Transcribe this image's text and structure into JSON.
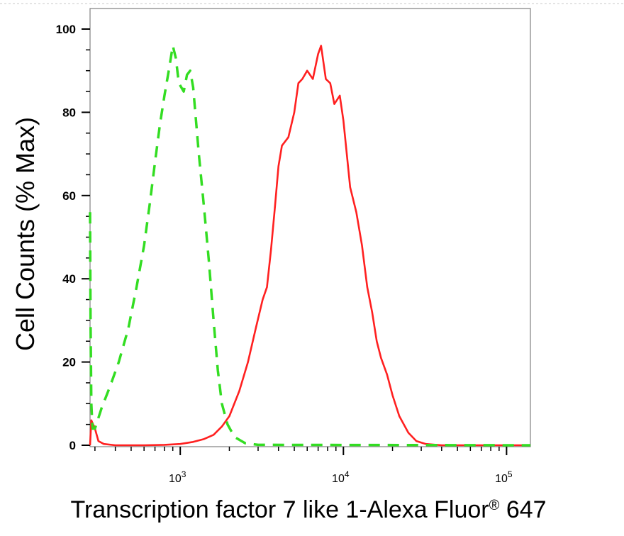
{
  "chart_data": {
    "type": "line",
    "title": "",
    "xlabel": "Transcription factor 7 like 1-Alexa Fluor",
    "xlabel_superscript": "®",
    "xlabel_suffix": " 647",
    "ylabel": "Cell Counts (% Max)",
    "x_scale": "log",
    "xlim": [
      280,
      140000
    ],
    "ylim": [
      0,
      100
    ],
    "y_ticks": [
      0,
      20,
      40,
      60,
      80,
      100
    ],
    "x_ticks": [
      {
        "value": 1000,
        "base": "10",
        "exponent": "3"
      },
      {
        "value": 10000,
        "base": "10",
        "exponent": "4"
      },
      {
        "value": 100000,
        "base": "10",
        "exponent": "5"
      }
    ],
    "grid": false,
    "legend": "none",
    "series": [
      {
        "style": "solid",
        "color": "#ff2020",
        "points": [
          [
            280,
            0
          ],
          [
            285,
            6
          ],
          [
            300,
            4
          ],
          [
            315,
            1
          ],
          [
            340,
            0.3
          ],
          [
            400,
            0
          ],
          [
            600,
            0
          ],
          [
            800,
            0.1
          ],
          [
            1000,
            0.3
          ],
          [
            1200,
            0.8
          ],
          [
            1400,
            1.5
          ],
          [
            1600,
            2.5
          ],
          [
            1800,
            4.5
          ],
          [
            2000,
            7
          ],
          [
            2300,
            13
          ],
          [
            2600,
            20
          ],
          [
            2900,
            28
          ],
          [
            3200,
            35
          ],
          [
            3400,
            38
          ],
          [
            3600,
            47
          ],
          [
            3800,
            57
          ],
          [
            4000,
            67
          ],
          [
            4200,
            72
          ],
          [
            4600,
            74
          ],
          [
            5000,
            80
          ],
          [
            5300,
            87
          ],
          [
            5600,
            88
          ],
          [
            6000,
            90
          ],
          [
            6500,
            88
          ],
          [
            7000,
            94
          ],
          [
            7300,
            96
          ],
          [
            7800,
            88
          ],
          [
            8300,
            87
          ],
          [
            8800,
            82
          ],
          [
            9500,
            84
          ],
          [
            10000,
            78
          ],
          [
            11000,
            62
          ],
          [
            12000,
            56
          ],
          [
            13000,
            48
          ],
          [
            14000,
            38
          ],
          [
            15000,
            32
          ],
          [
            16000,
            25
          ],
          [
            17000,
            21
          ],
          [
            18500,
            17
          ],
          [
            20000,
            12
          ],
          [
            22000,
            7
          ],
          [
            25000,
            3
          ],
          [
            28000,
            1
          ],
          [
            32000,
            0.3
          ],
          [
            40000,
            0
          ],
          [
            140000,
            0
          ]
        ]
      },
      {
        "style": "dashed",
        "color": "#33dd22",
        "points": [
          [
            280,
            56
          ],
          [
            282,
            30
          ],
          [
            285,
            10
          ],
          [
            290,
            4
          ],
          [
            300,
            4
          ],
          [
            330,
            9
          ],
          [
            370,
            14
          ],
          [
            420,
            20
          ],
          [
            480,
            28
          ],
          [
            540,
            38
          ],
          [
            600,
            48
          ],
          [
            650,
            58
          ],
          [
            700,
            68
          ],
          [
            750,
            77
          ],
          [
            800,
            84
          ],
          [
            850,
            90
          ],
          [
            900,
            96
          ],
          [
            940,
            93
          ],
          [
            980,
            87
          ],
          [
            1050,
            85
          ],
          [
            1100,
            89
          ],
          [
            1150,
            90
          ],
          [
            1200,
            86
          ],
          [
            1300,
            70
          ],
          [
            1400,
            57
          ],
          [
            1500,
            44
          ],
          [
            1600,
            30
          ],
          [
            1700,
            18
          ],
          [
            1800,
            10
          ],
          [
            1950,
            5
          ],
          [
            2150,
            2
          ],
          [
            2500,
            0.5
          ],
          [
            3000,
            0.1
          ],
          [
            140000,
            0
          ]
        ]
      }
    ]
  }
}
